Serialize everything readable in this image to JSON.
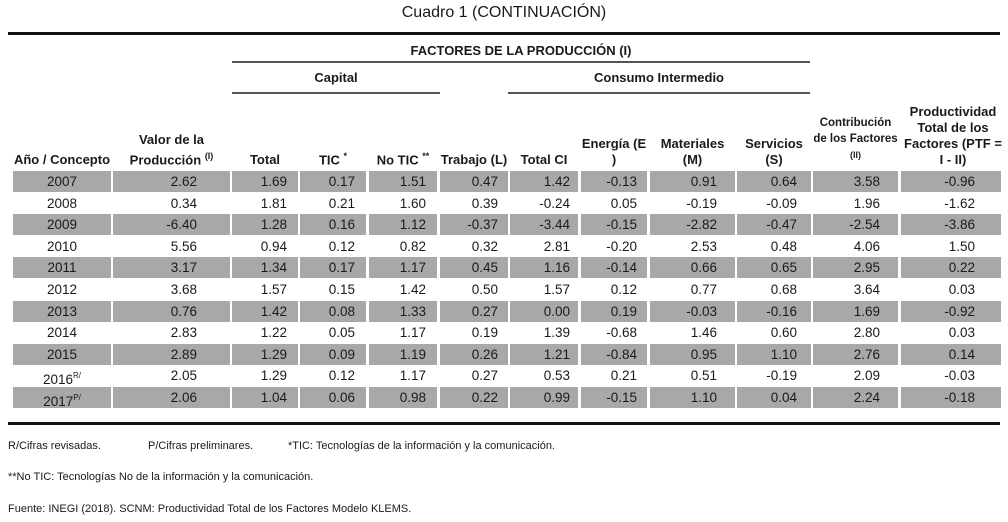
{
  "title": "Cuadro 1 (CONTINUACIÓN)",
  "group_header": "FACTORES DE LA PRODUCCIÓN (I)",
  "subgroups": {
    "capital": "Capital",
    "consumo": "Consumo Intermedio"
  },
  "columns": [
    {
      "label": "Año / Concepto"
    },
    {
      "label": "Valor de la Producción",
      "sup": "(I)"
    },
    {
      "label": "Total"
    },
    {
      "label": "TIC",
      "sup": "*"
    },
    {
      "label": "No TIC",
      "sup": "**"
    },
    {
      "label": "Trabajo (L)"
    },
    {
      "label": "Total CI"
    },
    {
      "label": "Energía (E )"
    },
    {
      "label": "Materiales (M)"
    },
    {
      "label": "Servicios (S)"
    },
    {
      "label": "Contribución de los Factores",
      "sup": "(II)"
    },
    {
      "label": "Productividad Total de los Factores (PTF = I - II)"
    }
  ],
  "rows": [
    {
      "year": "2007",
      "sup": "",
      "values": [
        "2.62",
        "1.69",
        "0.17",
        "1.51",
        "0.47",
        "1.42",
        "-0.13",
        "0.91",
        "0.64",
        "3.58",
        "-0.96"
      ]
    },
    {
      "year": "2008",
      "sup": "",
      "values": [
        "0.34",
        "1.81",
        "0.21",
        "1.60",
        "0.39",
        "-0.24",
        "0.05",
        "-0.19",
        "-0.09",
        "1.96",
        "-1.62"
      ]
    },
    {
      "year": "2009",
      "sup": "",
      "values": [
        "-6.40",
        "1.28",
        "0.16",
        "1.12",
        "-0.37",
        "-3.44",
        "-0.15",
        "-2.82",
        "-0.47",
        "-2.54",
        "-3.86"
      ]
    },
    {
      "year": "2010",
      "sup": "",
      "values": [
        "5.56",
        "0.94",
        "0.12",
        "0.82",
        "0.32",
        "2.81",
        "-0.20",
        "2.53",
        "0.48",
        "4.06",
        "1.50"
      ]
    },
    {
      "year": "2011",
      "sup": "",
      "values": [
        "3.17",
        "1.34",
        "0.17",
        "1.17",
        "0.45",
        "1.16",
        "-0.14",
        "0.66",
        "0.65",
        "2.95",
        "0.22"
      ]
    },
    {
      "year": "2012",
      "sup": "",
      "values": [
        "3.68",
        "1.57",
        "0.15",
        "1.42",
        "0.50",
        "1.57",
        "0.12",
        "0.77",
        "0.68",
        "3.64",
        "0.03"
      ]
    },
    {
      "year": "2013",
      "sup": "",
      "values": [
        "0.76",
        "1.42",
        "0.08",
        "1.33",
        "0.27",
        "0.00",
        "0.19",
        "-0.03",
        "-0.16",
        "1.69",
        "-0.92"
      ]
    },
    {
      "year": "2014",
      "sup": "",
      "values": [
        "2.83",
        "1.22",
        "0.05",
        "1.17",
        "0.19",
        "1.39",
        "-0.68",
        "1.46",
        "0.60",
        "2.80",
        "0.03"
      ]
    },
    {
      "year": "2015",
      "sup": "",
      "values": [
        "2.89",
        "1.29",
        "0.09",
        "1.19",
        "0.26",
        "1.21",
        "-0.84",
        "0.95",
        "1.10",
        "2.76",
        "0.14"
      ]
    },
    {
      "year": "2016",
      "sup": "R/",
      "values": [
        "2.05",
        "1.29",
        "0.12",
        "1.17",
        "0.27",
        "0.53",
        "0.21",
        "0.51",
        "-0.19",
        "2.09",
        "-0.03"
      ]
    },
    {
      "year": "2017",
      "sup": "P/",
      "values": [
        "2.06",
        "1.04",
        "0.06",
        "0.98",
        "0.22",
        "0.99",
        "-0.15",
        "1.10",
        "0.04",
        "2.24",
        "-0.18"
      ]
    }
  ],
  "notes": {
    "revisadas": "R/Cifras revisadas.",
    "preliminares": "P/Cifras preliminares.",
    "tic": "*TIC: Tecnologías de la información y la comunicación.",
    "notic": "**No TIC: Tecnologías No de la información y la comunicación.",
    "fuente": "Fuente: INEGI (2018). SCNM: Productividad Total de los Factores Modelo KLEMS."
  },
  "colors": {
    "shade": "#a8a8a8",
    "rule": "#111111"
  }
}
